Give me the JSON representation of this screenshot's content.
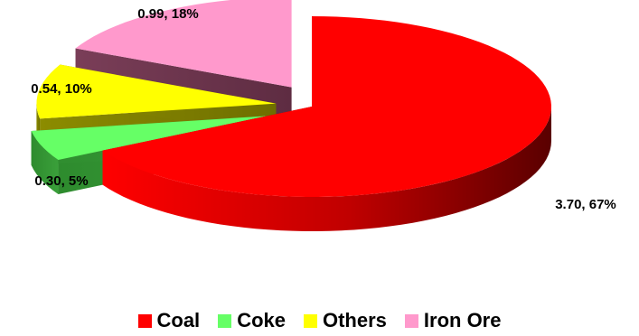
{
  "chart_data": {
    "type": "pie",
    "style": "3d-exploded",
    "title": "",
    "categories": [
      "Coal",
      "Coke",
      "Others",
      "Iron Ore"
    ],
    "values": [
      3.7,
      0.3,
      0.54,
      0.99
    ],
    "percents": [
      67,
      5,
      10,
      18
    ],
    "data_labels": [
      "3.70, 67%",
      "0.30, 5%",
      "0.54, 10%",
      "0.99, 18%"
    ],
    "colors": [
      "#ff0000",
      "#66ff66",
      "#ffff00",
      "#ff99cc"
    ],
    "legend_position": "bottom"
  },
  "legend": {
    "items": [
      {
        "label": "Coal",
        "color": "#ff0000"
      },
      {
        "label": "Coke",
        "color": "#66ff66"
      },
      {
        "label": "Others",
        "color": "#ffff00"
      },
      {
        "label": "Iron Ore",
        "color": "#ff99cc"
      }
    ]
  }
}
